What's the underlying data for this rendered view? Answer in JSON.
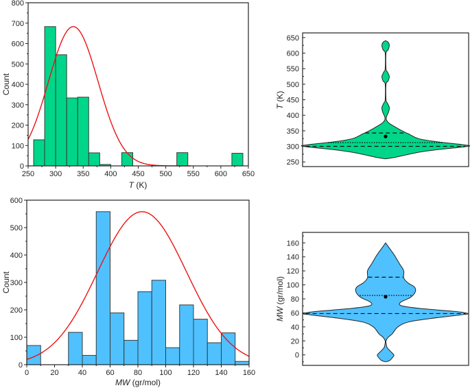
{
  "colors": {
    "green_fill": "#00d68a",
    "blue_fill": "#4fc1ff",
    "bar_stroke": "#3a3a3a",
    "fit_line": "#ee1111",
    "frame": "#222222"
  },
  "chart_data": [
    {
      "id": "hist-T",
      "type": "bar",
      "subtype": "histogram",
      "xlabel_italic": "T",
      "xlabel_rest": " (K)",
      "ylabel": "Count",
      "xlim": [
        250,
        650
      ],
      "ylim": [
        0,
        800
      ],
      "xticks": [
        250,
        300,
        350,
        400,
        450,
        500,
        550,
        600,
        650
      ],
      "yticks": [
        0,
        100,
        200,
        300,
        400,
        500,
        600,
        700,
        800
      ],
      "bins": [
        {
          "from": 260,
          "to": 280,
          "count": 128
        },
        {
          "from": 280,
          "to": 300,
          "count": 683
        },
        {
          "from": 300,
          "to": 320,
          "count": 545
        },
        {
          "from": 320,
          "to": 340,
          "count": 333
        },
        {
          "from": 340,
          "to": 360,
          "count": 337
        },
        {
          "from": 360,
          "to": 380,
          "count": 64
        },
        {
          "from": 380,
          "to": 400,
          "count": 7
        },
        {
          "from": 420,
          "to": 440,
          "count": 65
        },
        {
          "from": 520,
          "to": 540,
          "count": 65
        },
        {
          "from": 620,
          "to": 640,
          "count": 62
        }
      ],
      "normal_fit": {
        "mean": 332,
        "sd": 45,
        "peak": 683,
        "x_range": [
          250,
          545
        ]
      },
      "grid": false
    },
    {
      "id": "hist-MW",
      "type": "bar",
      "subtype": "histogram",
      "xlabel_italic": "MW",
      "xlabel_rest": " (gr/mol)",
      "ylabel": "Count",
      "xlim": [
        0,
        160
      ],
      "ylim": [
        0,
        600
      ],
      "xticks": [
        0,
        20,
        40,
        60,
        80,
        100,
        120,
        140,
        160
      ],
      "yticks": [
        0,
        100,
        200,
        300,
        400,
        500,
        600
      ],
      "bins": [
        {
          "from": 0,
          "to": 10,
          "count": 70
        },
        {
          "from": 30,
          "to": 40,
          "count": 118
        },
        {
          "from": 40,
          "to": 50,
          "count": 34
        },
        {
          "from": 50,
          "to": 60,
          "count": 558
        },
        {
          "from": 60,
          "to": 70,
          "count": 189
        },
        {
          "from": 70,
          "to": 80,
          "count": 89
        },
        {
          "from": 80,
          "to": 90,
          "count": 266
        },
        {
          "from": 90,
          "to": 100,
          "count": 308
        },
        {
          "from": 100,
          "to": 110,
          "count": 62
        },
        {
          "from": 110,
          "to": 120,
          "count": 218
        },
        {
          "from": 120,
          "to": 130,
          "count": 166
        },
        {
          "from": 130,
          "to": 140,
          "count": 80
        },
        {
          "from": 140,
          "to": 150,
          "count": 116
        },
        {
          "from": 150,
          "to": 160,
          "count": 12
        }
      ],
      "normal_fit": {
        "mean": 83,
        "sd": 32,
        "peak": 558,
        "x_range": [
          0,
          160
        ]
      },
      "grid": false
    },
    {
      "id": "violin-T",
      "type": "violin",
      "ylabel_italic": "T",
      "ylabel_rest": " (K)",
      "ylim": [
        235,
        665
      ],
      "yticks": [
        250,
        300,
        350,
        400,
        450,
        500,
        550,
        600,
        650
      ],
      "q1": 300,
      "median": 312,
      "q3": 343,
      "mean": 332,
      "min": 260,
      "max": 640,
      "density_profile": [
        [
          260,
          0.0
        ],
        [
          265,
          0.12
        ],
        [
          280,
          0.38
        ],
        [
          290,
          0.65
        ],
        [
          300,
          1.0
        ],
        [
          305,
          0.95
        ],
        [
          315,
          0.62
        ],
        [
          325,
          0.4
        ],
        [
          340,
          0.28
        ],
        [
          350,
          0.2
        ],
        [
          365,
          0.1
        ],
        [
          375,
          0.04
        ],
        [
          385,
          0.01
        ],
        [
          395,
          0.01
        ],
        [
          410,
          0.035
        ],
        [
          425,
          0.045
        ],
        [
          440,
          0.02
        ],
        [
          450,
          0.005
        ],
        [
          500,
          0.005
        ],
        [
          510,
          0.03
        ],
        [
          525,
          0.045
        ],
        [
          540,
          0.02
        ],
        [
          550,
          0.005
        ],
        [
          600,
          0.005
        ],
        [
          610,
          0.03
        ],
        [
          625,
          0.045
        ],
        [
          635,
          0.03
        ],
        [
          640,
          0.0
        ]
      ]
    },
    {
      "id": "violin-MW",
      "type": "violin",
      "ylabel_italic": "MW",
      "ylabel_rest": " (gr/mol)",
      "ylim": [
        -15,
        175
      ],
      "yticks": [
        0,
        20,
        40,
        60,
        80,
        100,
        120,
        140,
        160
      ],
      "q1": 59,
      "median": 85,
      "q3": 111,
      "mean": 83,
      "min": -10,
      "max": 160,
      "density_profile": [
        [
          -10,
          0.0
        ],
        [
          -8,
          0.05
        ],
        [
          -3,
          0.09
        ],
        [
          0,
          0.1
        ],
        [
          5,
          0.06
        ],
        [
          10,
          0.02
        ],
        [
          15,
          0.008
        ],
        [
          20,
          0.005
        ],
        [
          25,
          0.03
        ],
        [
          30,
          0.08
        ],
        [
          40,
          0.15
        ],
        [
          47,
          0.28
        ],
        [
          52,
          0.55
        ],
        [
          57,
          0.9
        ],
        [
          59,
          1.0
        ],
        [
          62,
          0.85
        ],
        [
          66,
          0.45
        ],
        [
          70,
          0.2
        ],
        [
          75,
          0.18
        ],
        [
          82,
          0.3
        ],
        [
          90,
          0.36
        ],
        [
          97,
          0.35
        ],
        [
          103,
          0.27
        ],
        [
          110,
          0.22
        ],
        [
          120,
          0.22
        ],
        [
          130,
          0.17
        ],
        [
          140,
          0.12
        ],
        [
          147,
          0.08
        ],
        [
          155,
          0.03
        ],
        [
          160,
          0.0
        ]
      ]
    }
  ]
}
